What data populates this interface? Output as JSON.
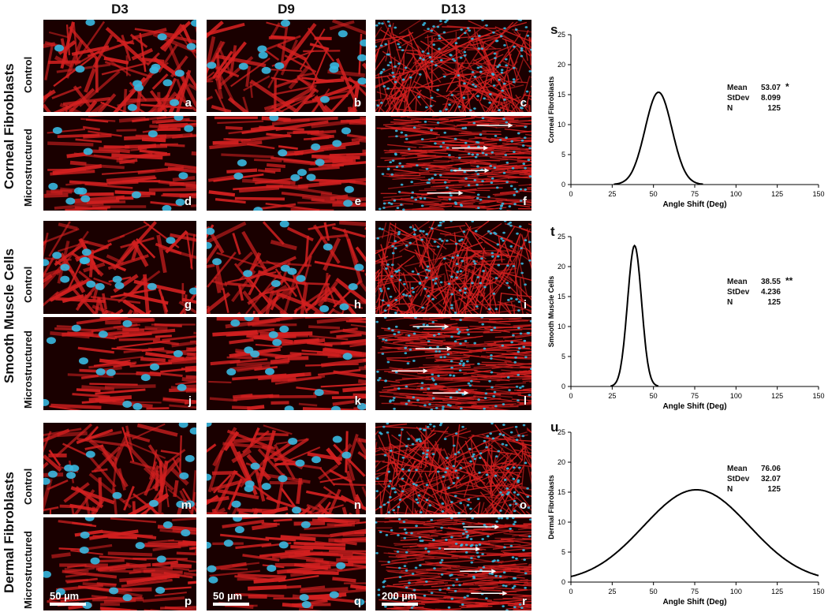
{
  "columns": [
    "D3",
    "D9",
    "D13"
  ],
  "groups": [
    {
      "name": "Corneal Fibroblasts",
      "control_label": "Control",
      "micro_label": "Microstructured"
    },
    {
      "name": "Smooth Muscle Cells",
      "control_label": "Control",
      "micro_label": "Microstructured"
    },
    {
      "name": "Dermal Fibroblasts",
      "control_label": "Control",
      "micro_label": "Microstructured"
    }
  ],
  "panel_letters": [
    "a",
    "b",
    "c",
    "d",
    "e",
    "f",
    "g",
    "h",
    "i",
    "j",
    "k",
    "l",
    "m",
    "n",
    "o",
    "p",
    "q",
    "r"
  ],
  "scale_bars": [
    "50 µm",
    "50 µm",
    "200  µm"
  ],
  "colors": {
    "actin": "#d42020",
    "nuclei": "#38b8e0",
    "background": "#1a0000",
    "arrow": "#ffffff"
  },
  "chart_data": [
    {
      "type": "line",
      "letter": "s",
      "ylabel": "Corneal Fibroblasts",
      "xlabel": "Angle Shift (Deg)",
      "xlim": [
        0,
        150
      ],
      "ylim": [
        0,
        25
      ],
      "xticks": [
        0,
        25,
        50,
        75,
        100,
        125,
        150
      ],
      "yticks": [
        0,
        5,
        10,
        15,
        20,
        25
      ],
      "mean": 53.07,
      "stdev": 8.099,
      "peak": 15.4,
      "stats": {
        "mean_label": "Mean",
        "mean": "53.07",
        "sig": "*",
        "stdev_label": "StDev",
        "stdev": "8.099",
        "n_label": "N",
        "n": "125"
      }
    },
    {
      "type": "line",
      "letter": "t",
      "ylabel": "Smooth Muscle Cells",
      "xlabel": "Angle Shift (Deg)",
      "xlim": [
        0,
        150
      ],
      "ylim": [
        0,
        25
      ],
      "xticks": [
        0,
        25,
        50,
        75,
        100,
        125,
        150
      ],
      "yticks": [
        0,
        5,
        10,
        15,
        20,
        25
      ],
      "mean": 38.55,
      "stdev": 4.236,
      "peak": 23.5,
      "stats": {
        "mean_label": "Mean",
        "mean": "38.55",
        "sig": "**",
        "stdev_label": "StDev",
        "stdev": "4.236",
        "n_label": "N",
        "n": "125"
      }
    },
    {
      "type": "line",
      "letter": "u",
      "ylabel": "Dermal Fibroblasts",
      "xlabel": "Angle Shift (Deg)",
      "xlim": [
        0,
        150
      ],
      "ylim": [
        0,
        25
      ],
      "xticks": [
        0,
        25,
        50,
        75,
        100,
        125,
        150
      ],
      "yticks": [
        0,
        5,
        10,
        15,
        20,
        25
      ],
      "mean": 76.06,
      "stdev": 32.07,
      "peak": 15.4,
      "stats": {
        "mean_label": "Mean",
        "mean": "76.06",
        "sig": "",
        "stdev_label": "StDev",
        "stdev": "32.07",
        "n_label": "N",
        "n": "125"
      }
    }
  ]
}
